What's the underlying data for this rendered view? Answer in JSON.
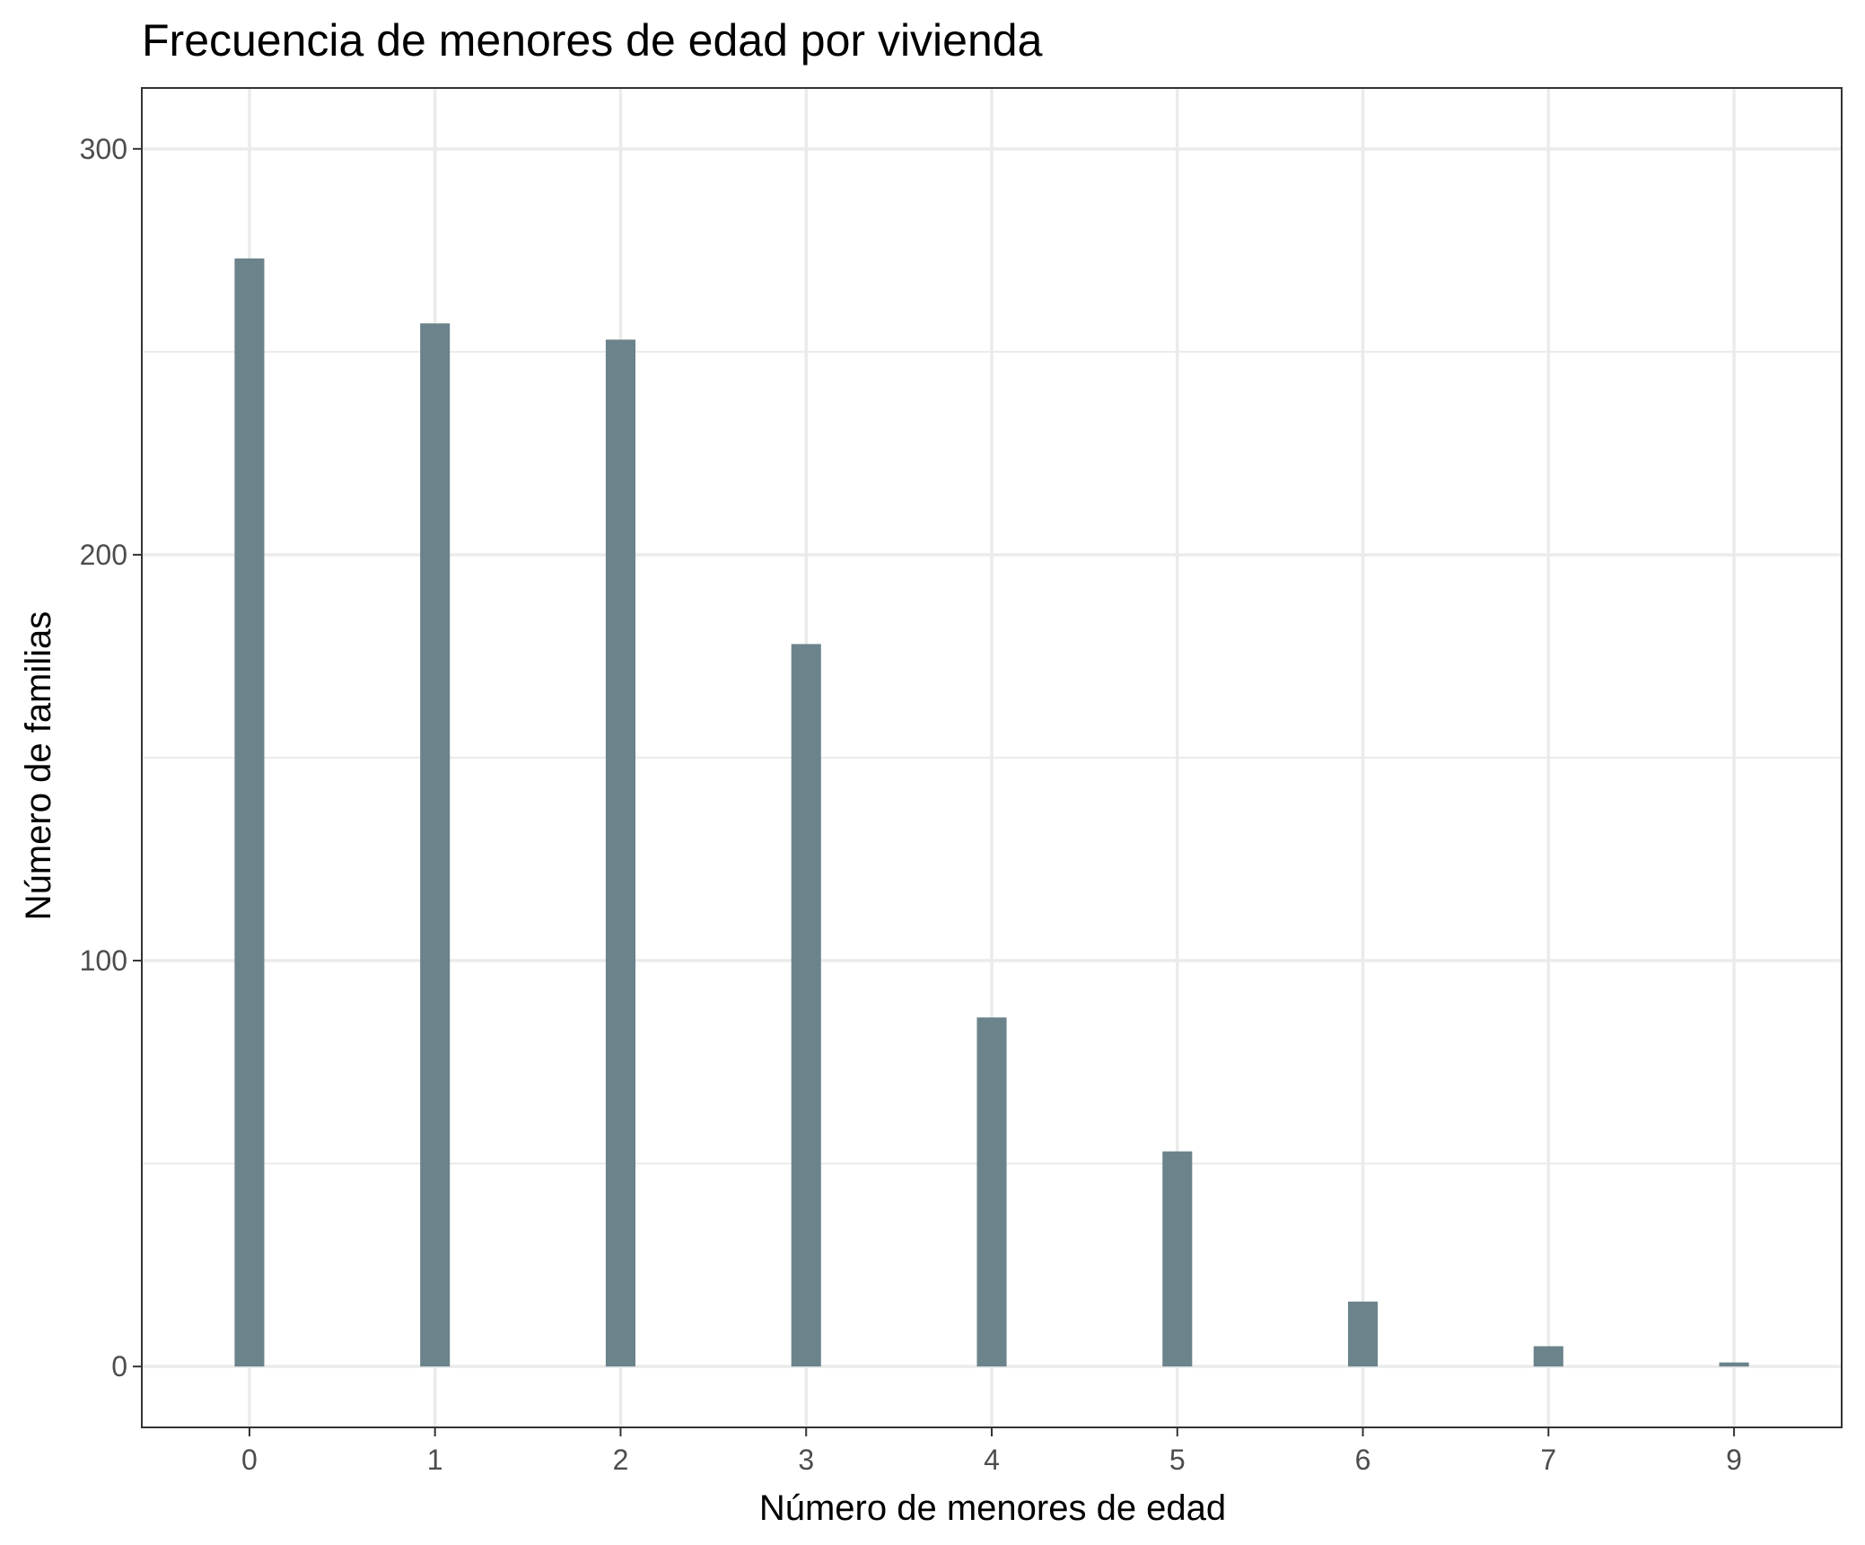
{
  "chart_data": {
    "type": "bar",
    "title": "Frecuencia de menores de edad por vivienda",
    "xlabel": "Número de menores de edad",
    "ylabel": "Número de familias",
    "categories": [
      "0",
      "1",
      "2",
      "3",
      "4",
      "5",
      "6",
      "7",
      "9"
    ],
    "x": [
      0,
      1,
      2,
      3,
      4,
      5,
      6,
      7,
      9
    ],
    "values": [
      273,
      257,
      253,
      178,
      86,
      53,
      16,
      5,
      1
    ],
    "ylim": [
      -15,
      315
    ],
    "xlim": [
      -0.58,
      8.58
    ],
    "y_ticks": [
      0,
      100,
      200,
      300
    ],
    "y_tick_labels": [
      "0",
      "100",
      "200",
      "300"
    ],
    "grid": true,
    "bar_color": "#6b838b",
    "grid_color": "#ebebeb",
    "panel_border_color": "#333333"
  }
}
